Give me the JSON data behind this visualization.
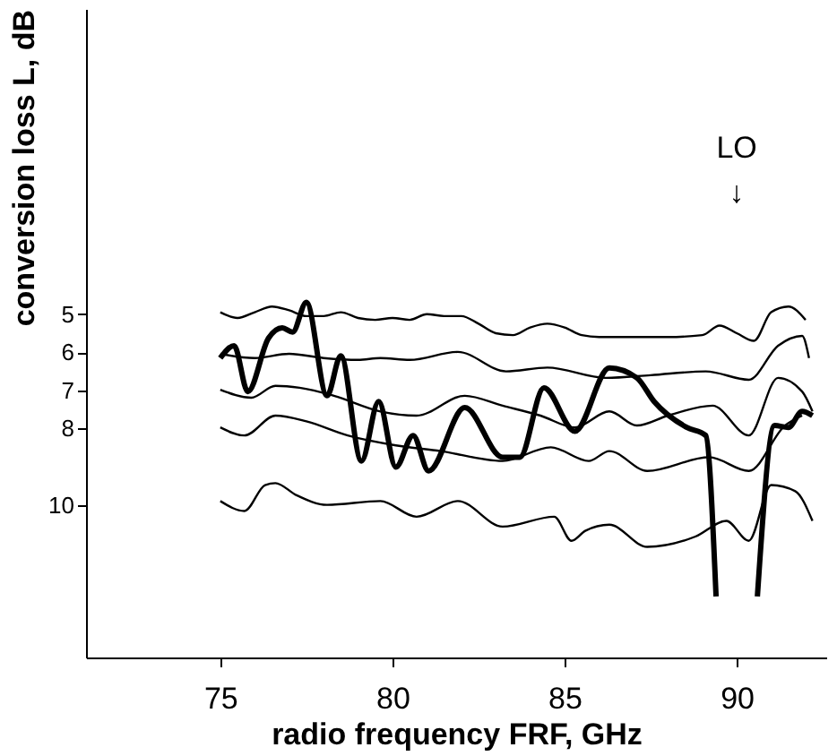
{
  "chart_data": {
    "type": "line",
    "xlabel": "radio frequency FRF, GHz",
    "ylabel": "conversion loss   L, dB",
    "xlim": [
      71.1,
      92.6
    ],
    "ylim": [
      14,
      -3
    ],
    "xticks": [
      75,
      80,
      85,
      90
    ],
    "yticks": [
      5,
      6,
      7,
      8,
      10
    ],
    "grid": false,
    "line_style": "solid",
    "annotations": [
      "LO",
      "↓"
    ],
    "series": [
      {
        "color": "#000000",
        "x": [
          75,
          75.5,
          76,
          76.5,
          77,
          77.5,
          78,
          78.5,
          79,
          79.5,
          80,
          80.5,
          81,
          81.5,
          82,
          82.5,
          83,
          83.5,
          84,
          84.5,
          85,
          85.5,
          86,
          87,
          88,
          89,
          89.5,
          90,
          90.5,
          91,
          91.5,
          92
        ],
        "values": [
          4.95,
          5.1,
          4.95,
          4.8,
          4.9,
          5.05,
          5.05,
          4.95,
          5.1,
          5.15,
          5.1,
          5.15,
          5.0,
          5.05,
          5.05,
          5.25,
          5.5,
          5.55,
          5.35,
          5.25,
          5.35,
          5.55,
          5.6,
          5.6,
          5.6,
          5.55,
          5.3,
          5.5,
          5.7,
          4.95,
          4.8,
          5.15
        ]
      },
      {
        "color": "#000000",
        "x": [
          75,
          76,
          77,
          78,
          79,
          79.65,
          80.5,
          81.9,
          83.3,
          84.5,
          86.2,
          87.5,
          89.1,
          90.35,
          91.2,
          91.9,
          92.1
        ],
        "values": [
          6.04,
          6.15,
          6.04,
          6.15,
          6.2,
          6.15,
          6.2,
          5.99,
          6.5,
          6.4,
          6.67,
          6.6,
          6.5,
          6.72,
          5.83,
          5.57,
          6.15
        ]
      },
      {
        "color": "#000000",
        "x": [
          75,
          75.9,
          76.6,
          77.3,
          78.3,
          79.65,
          80.7,
          82.1,
          83.2,
          84.3,
          85.3,
          86.3,
          87.1,
          88.0,
          89.3,
          90.35,
          91.2,
          91.9,
          92.2
        ],
        "values": [
          6.98,
          7.19,
          6.88,
          6.93,
          7.14,
          7.55,
          7.66,
          7.14,
          7.4,
          7.66,
          7.97,
          7.55,
          7.92,
          7.66,
          7.4,
          8.18,
          6.67,
          7.03,
          7.55
        ]
      },
      {
        "color": "#000000",
        "x": [
          75,
          75.7,
          76.6,
          77.5,
          78.7,
          80.1,
          81.4,
          83.2,
          84.6,
          85.7,
          86.3,
          87.4,
          89.2,
          90.35,
          91.4,
          91.9
        ],
        "values": [
          7.97,
          8.18,
          7.66,
          7.81,
          8.18,
          8.44,
          8.59,
          8.85,
          8.49,
          8.85,
          8.59,
          9.11,
          8.75,
          9.11,
          7.92,
          7.66
        ]
      },
      {
        "color": "#000000",
        "x": [
          75,
          75.7,
          76.3,
          76.6,
          77.2,
          78.1,
          79.65,
          80.7,
          81.9,
          83.2,
          84.7,
          85.2,
          85.6,
          86.3,
          87.4,
          88.8,
          89.7,
          90.35,
          91.0,
          91.7,
          92.2
        ],
        "values": [
          9.9,
          10.16,
          9.48,
          9.43,
          9.74,
          10.0,
          9.9,
          10.31,
          9.9,
          10.57,
          10.31,
          10.94,
          10.68,
          10.52,
          11.1,
          10.83,
          10.42,
          10.94,
          9.48,
          9.64,
          10.42
        ]
      },
      {
        "color": "#000000",
        "x": [
          75,
          75.4,
          75.8,
          76.4,
          76.8,
          77.1,
          77.5,
          78.1,
          78.5,
          79.1,
          79.6,
          80.1,
          80.6,
          81.05,
          82.1,
          83.2,
          83.7,
          84.4,
          85.3,
          86.3,
          87.1,
          87.6,
          88.55,
          89.1,
          89.4,
          90.0,
          90.6,
          91.1,
          91.5,
          91.9,
          92.2
        ],
        "values": [
          6.15,
          5.83,
          7.03,
          5.63,
          5.36,
          5.47,
          4.69,
          7.14,
          6.09,
          8.85,
          7.29,
          9.01,
          8.18,
          9.11,
          7.45,
          8.75,
          8.75,
          6.93,
          8.07,
          6.41,
          6.67,
          7.29,
          7.97,
          8.18,
          12.4,
          null,
          12.4,
          7.92,
          7.97,
          7.55,
          7.66
        ]
      }
    ]
  }
}
